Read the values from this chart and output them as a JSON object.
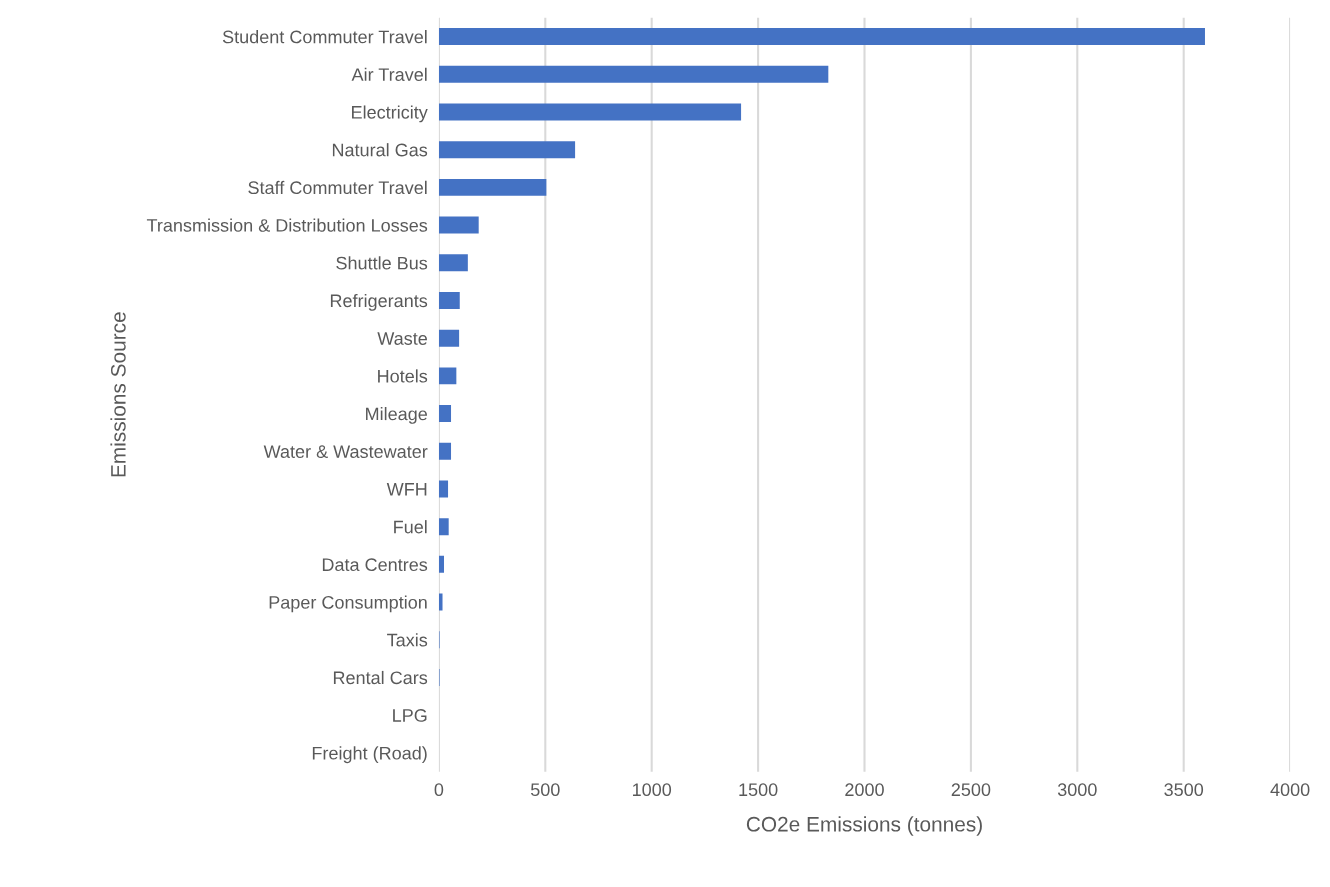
{
  "chart_data": {
    "type": "bar",
    "orientation": "horizontal",
    "categories": [
      "Student Commuter Travel",
      "Air Travel",
      "Electricity",
      "Natural Gas",
      "Staff Commuter Travel",
      "Transmission & Distribution Losses",
      "Shuttle Bus",
      "Refrigerants",
      "Waste",
      "Hotels",
      "Mileage",
      "Water & Wastewater",
      "WFH",
      "Fuel",
      "Data Centres",
      "Paper Consumption",
      "Taxis",
      "Rental Cars",
      "LPG",
      "Freight (Road)"
    ],
    "values": [
      3600,
      1830,
      1420,
      640,
      505,
      187,
      136,
      98,
      95,
      82,
      57,
      57,
      43,
      46,
      24,
      17,
      3,
      3,
      0,
      0
    ],
    "color": "#4472c4",
    "xlim": [
      0,
      4000
    ],
    "xticks": [
      0,
      500,
      1000,
      1500,
      2000,
      2500,
      3000,
      3500,
      4000
    ],
    "xlabel": "CO2e Emissions (tonnes)",
    "ylabel": "Emissions Source",
    "grid": "x"
  }
}
